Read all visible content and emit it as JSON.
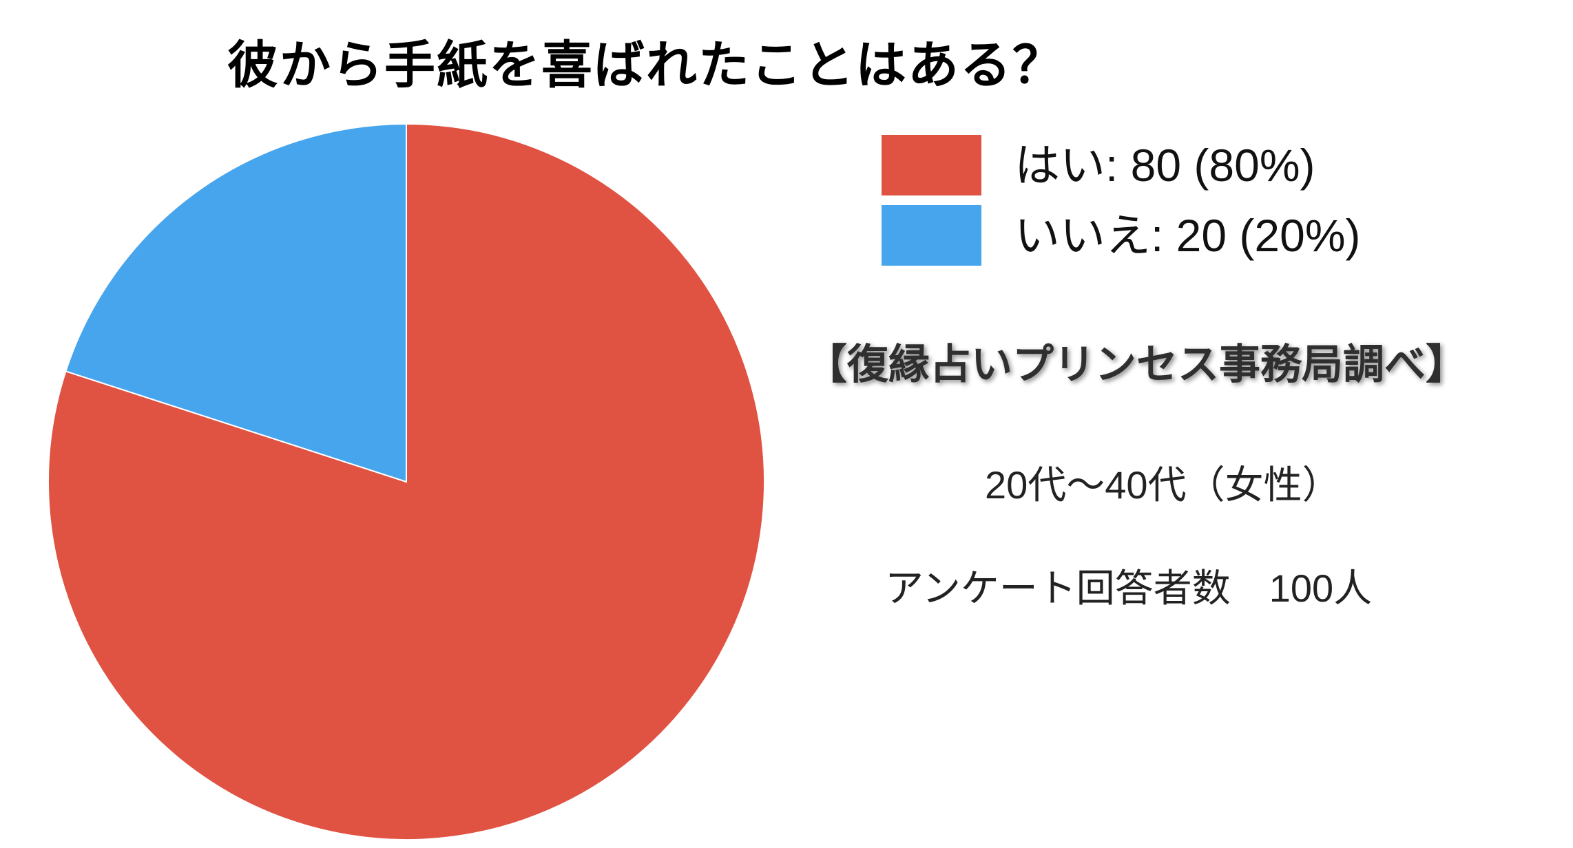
{
  "chart_data": {
    "type": "pie",
    "title": "彼から手紙を喜ばれたことはある？",
    "categories": [
      "はい",
      "いいえ"
    ],
    "values": [
      80,
      20
    ],
    "percentages": [
      80,
      20
    ],
    "colors": [
      "#e05242",
      "#47a5ed"
    ],
    "legend": [
      "はい: 80 (80%)",
      "いいえ: 20 (20%)"
    ],
    "legend_position": "right",
    "start_angle_deg": 0,
    "direction": "clockwise"
  },
  "annotations": {
    "source": "【復縁占いプリンセス事務局調べ】",
    "demographic": "20代〜40代（女性）",
    "respondents": "アンケート回答者数　100人"
  }
}
